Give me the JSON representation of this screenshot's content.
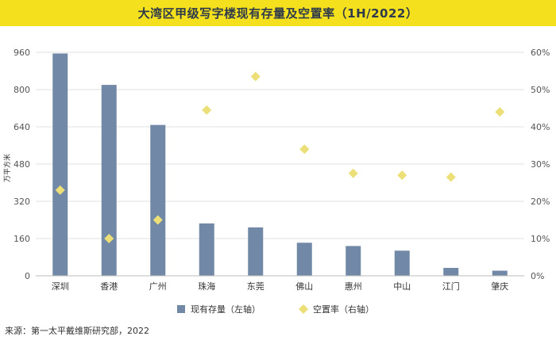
{
  "title": "大湾区甲级写字楼现有存量及空置率（1H/2022）",
  "source": "来源：第一太平戴维斯研究部，2022",
  "colors": {
    "bar": "#7189a6",
    "diamond": "#ecdf78",
    "title_bg": "#f4e01c",
    "axis_text": "#555555",
    "grid": "#e0e0e0"
  },
  "chart_data": {
    "type": "bar+scatter",
    "categories": [
      "深圳",
      "香港",
      "广州",
      "珠海",
      "东莞",
      "佛山",
      "惠州",
      "中山",
      "江门",
      "肇庆"
    ],
    "series": [
      {
        "name": "现有存量（左轴）",
        "type": "bar",
        "axis": "left",
        "values": [
          955,
          820,
          648,
          225,
          208,
          142,
          128,
          108,
          34,
          22
        ]
      },
      {
        "name": "空置率（右轴）",
        "type": "scatter",
        "marker": "diamond",
        "axis": "right",
        "values": [
          23,
          10,
          15,
          44.5,
          53.5,
          34,
          27.5,
          27,
          26.5,
          44
        ]
      }
    ],
    "left_axis": {
      "label": "万平方米",
      "ylim": [
        0,
        960
      ],
      "ticks": [
        "0",
        "160",
        "320",
        "480",
        "640",
        "800",
        "960"
      ]
    },
    "right_axis": {
      "ylim": [
        0,
        60
      ],
      "ticks": [
        "0%",
        "10%",
        "20%",
        "30%",
        "40%",
        "50%",
        "60%"
      ]
    },
    "legend": [
      {
        "label": "现有存量（左轴）",
        "marker": "square"
      },
      {
        "label": "空置率（右轴）",
        "marker": "diamond"
      }
    ],
    "legend_position": "bottom"
  }
}
